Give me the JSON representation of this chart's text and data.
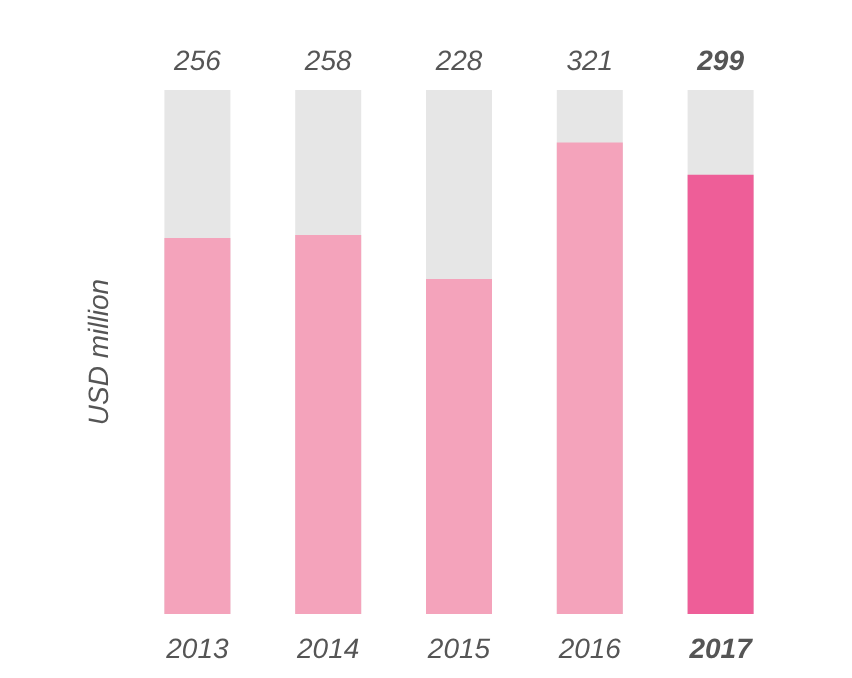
{
  "chart_data": {
    "type": "bar",
    "ylabel": "USD million",
    "categories": [
      "2013",
      "2014",
      "2015",
      "2016",
      "2017"
    ],
    "values": [
      256,
      258,
      228,
      321,
      299
    ],
    "colors": [
      "#f4a3bb",
      "#f4a3bb",
      "#f4a3bb",
      "#f4a3bb",
      "#ee5e98"
    ],
    "data_labels": true,
    "tick_labels": "x"
  }
}
